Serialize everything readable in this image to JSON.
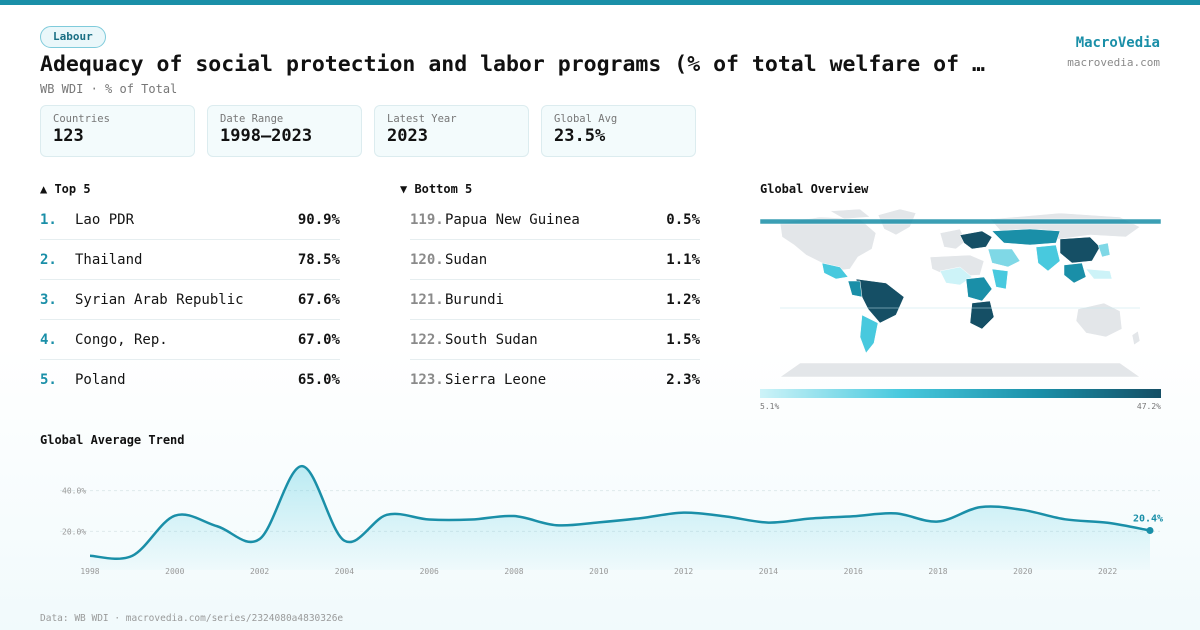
{
  "header": {
    "badge": "Labour",
    "title": "Adequacy of social protection and labor programs (% of total welfare of …",
    "subtitle": "WB WDI · % of Total",
    "brand_name": "MacroVedia",
    "brand_url": "macrovedia.com"
  },
  "stats": [
    {
      "label": "Countries",
      "value": "123"
    },
    {
      "label": "Date Range",
      "value": "1998–2023"
    },
    {
      "label": "Latest Year",
      "value": "2023"
    },
    {
      "label": "Global Avg",
      "value": "23.5%"
    }
  ],
  "top5": {
    "heading": "▲ Top 5",
    "items": [
      {
        "rank": "1.",
        "name": "Lao PDR",
        "value": "90.9%"
      },
      {
        "rank": "2.",
        "name": "Thailand",
        "value": "78.5%"
      },
      {
        "rank": "3.",
        "name": "Syrian Arab Republic",
        "value": "67.6%"
      },
      {
        "rank": "4.",
        "name": "Congo, Rep.",
        "value": "67.0%"
      },
      {
        "rank": "5.",
        "name": "Poland",
        "value": "65.0%"
      }
    ]
  },
  "bottom5": {
    "heading": "▼ Bottom 5",
    "items": [
      {
        "rank": "119.",
        "name": "Papua New Guinea",
        "value": "0.5%"
      },
      {
        "rank": "120.",
        "name": "Sudan",
        "value": "1.1%"
      },
      {
        "rank": "121.",
        "name": "Burundi",
        "value": "1.2%"
      },
      {
        "rank": "122.",
        "name": "South Sudan",
        "value": "1.5%"
      },
      {
        "rank": "123.",
        "name": "Sierra Leone",
        "value": "2.3%"
      }
    ]
  },
  "map": {
    "heading": "Global Overview",
    "legend_min": "5.1%",
    "legend_max": "47.2%"
  },
  "trend": {
    "heading": "Global Average Trend",
    "last_label": "20.4%"
  },
  "footer": "Data: WB WDI · macrovedia.com/series/2324080a4830326e",
  "colors": {
    "accent": "#1a8fa8",
    "dark": "#154f65",
    "light": "#cdf3f8"
  },
  "chart_data": {
    "type": "area",
    "title": "Global Average Trend",
    "x": [
      1998,
      1999,
      2000,
      2001,
      2002,
      2003,
      2004,
      2005,
      2006,
      2007,
      2008,
      2009,
      2010,
      2011,
      2012,
      2013,
      2014,
      2015,
      2016,
      2017,
      2018,
      2019,
      2020,
      2021,
      2022,
      2023
    ],
    "values": [
      8.0,
      8.0,
      27.7,
      22.5,
      16.2,
      52.0,
      15.4,
      28.1,
      25.8,
      25.8,
      27.5,
      23.0,
      24.4,
      26.5,
      29.2,
      27.3,
      24.3,
      26.3,
      27.4,
      28.8,
      24.8,
      31.9,
      30.5,
      25.9,
      24.2,
      20.4
    ],
    "x_ticks": [
      "1998",
      "2000",
      "2002",
      "2004",
      "2006",
      "2008",
      "2010",
      "2012",
      "2014",
      "2016",
      "2018",
      "2020",
      "2022"
    ],
    "y_ticks": [
      "20.0%",
      "40.0%"
    ],
    "y_tick_values": [
      20,
      40
    ],
    "ylim": [
      2,
      56
    ],
    "grid": true
  }
}
